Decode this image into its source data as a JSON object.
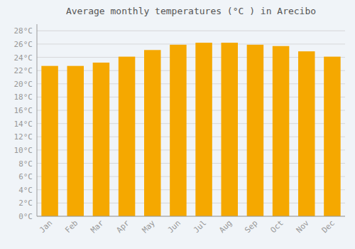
{
  "chart_data": {
    "type": "bar",
    "title": "Average monthly temperatures (°C ) in Arecibo",
    "categories": [
      "Jan",
      "Feb",
      "Mar",
      "Apr",
      "May",
      "Jun",
      "Jul",
      "Aug",
      "Sep",
      "Oct",
      "Nov",
      "Dec"
    ],
    "values": [
      22.7,
      22.7,
      23.2,
      24.1,
      25.1,
      25.9,
      26.2,
      26.2,
      25.9,
      25.7,
      24.9,
      24.1
    ],
    "color": "#F5A800",
    "ylim": [
      0,
      29
    ],
    "yticks": [
      {
        "value": 0,
        "label": "0°C"
      },
      {
        "value": 2,
        "label": "2°C"
      },
      {
        "value": 4,
        "label": "4°C"
      },
      {
        "value": 6,
        "label": "6°C"
      },
      {
        "value": 8,
        "label": "8°C"
      },
      {
        "value": 10,
        "label": "10°C"
      },
      {
        "value": 12,
        "label": "12°C"
      },
      {
        "value": 14,
        "label": "14°C"
      },
      {
        "value": 16,
        "label": "16°C"
      },
      {
        "value": 18,
        "label": "18°C"
      },
      {
        "value": 20,
        "label": "20°C"
      },
      {
        "value": 22,
        "label": "22°C"
      },
      {
        "value": 24,
        "label": "24°C"
      },
      {
        "value": 26,
        "label": "26°C"
      },
      {
        "value": 28,
        "label": "28°C"
      }
    ],
    "grid": true
  }
}
